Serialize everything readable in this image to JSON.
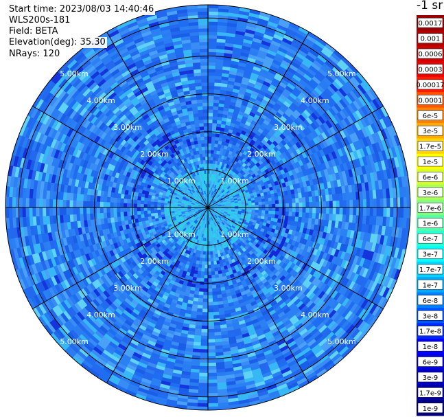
{
  "header": {
    "start_time": "Start time: 2023/08/03 14:40:46",
    "instrument": "WLS200s-181",
    "field": "Field: BETA",
    "elevation": "Elevation(deg): 35.30",
    "nrays": "NRays: 120"
  },
  "chart_data": {
    "type": "heatmap",
    "projection": "polar-ppi",
    "field": "BETA",
    "elevation_deg": 35.3,
    "n_rays": 120,
    "range_rings_km": [
      1,
      2,
      3,
      4,
      5
    ],
    "range_labels": [
      "1.00km",
      "2.00km",
      "3.00km",
      "4.00km",
      "5.00km"
    ],
    "spokes_deg": [
      0,
      30,
      60,
      90,
      120,
      150,
      180,
      210,
      240,
      270,
      300,
      330
    ],
    "max_range_km": 5.0,
    "grid": true,
    "colorbar": {
      "title": "-1 sr",
      "placement": "right",
      "labels": [
        "0.0017",
        "0.001",
        "0.0006",
        "0.0003",
        "0.00017",
        "0.0001",
        "6e-5",
        "3e-5",
        "1.7e-5",
        "1e-5",
        "6e-6",
        "3e-6",
        "1.7e-6",
        "1e-6",
        "6e-7",
        "3e-7",
        "1.7e-7",
        "1e-7",
        "6e-8",
        "3e-8",
        "1.7e-8",
        "1e-8",
        "6e-9",
        "3e-9",
        "1.7e-9",
        "1e-9"
      ],
      "colors": [
        "#990000",
        "#b30000",
        "#cc0000",
        "#e60000",
        "#ff1a00",
        "#ff5500",
        "#ff8000",
        "#ffaa00",
        "#ffd400",
        "#ffff00",
        "#d4ff2b",
        "#aaff55",
        "#80ff80",
        "#55ffaa",
        "#2bffd4",
        "#00ffff",
        "#00d4ff",
        "#00aaff",
        "#0080ff",
        "#0055ff",
        "#002bff",
        "#0000ff",
        "#0000e0",
        "#0000c2",
        "#0000a3",
        "#000080"
      ]
    }
  }
}
